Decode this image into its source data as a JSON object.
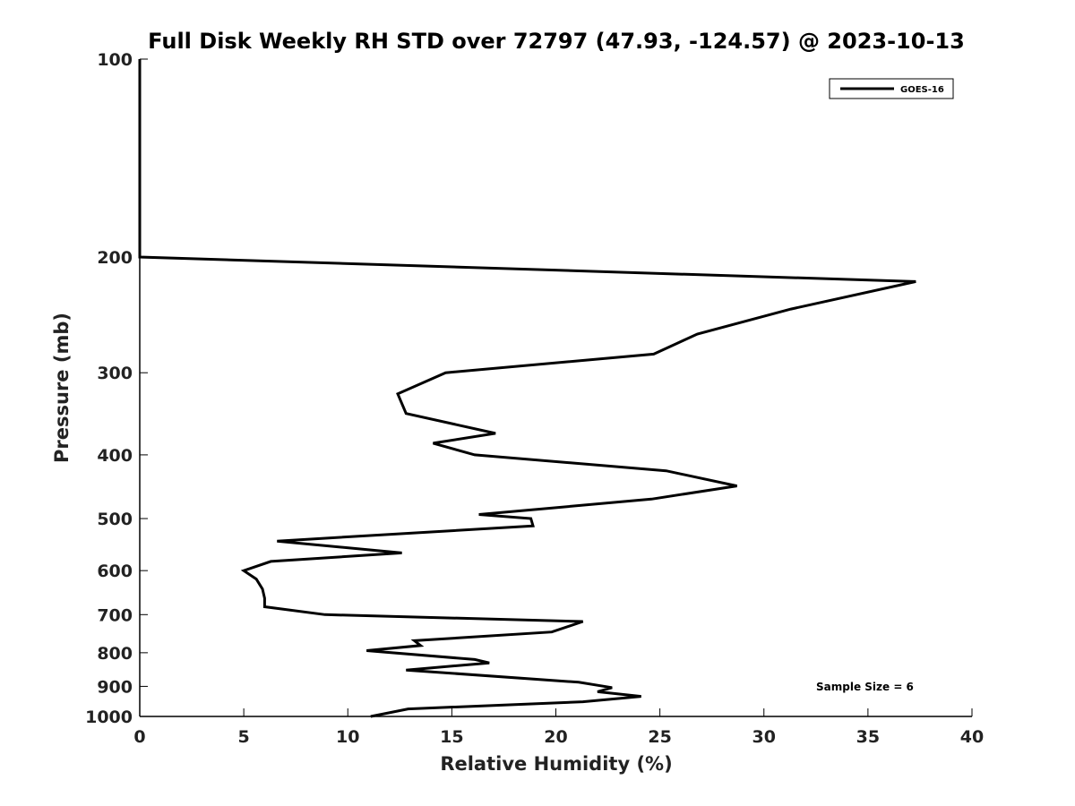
{
  "chart_data": {
    "type": "line",
    "title": "Full Disk Weekly RH STD over 72797 (47.93, -124.57) @ 2023-10-13",
    "xlabel": "Relative Humidity (%)",
    "ylabel": "Pressure (mb)",
    "xlim": [
      0,
      40
    ],
    "ylim": [
      100,
      1000
    ],
    "y_scale": "log",
    "y_reversed": true,
    "x_ticks": [
      0,
      5,
      10,
      15,
      20,
      25,
      30,
      35,
      40
    ],
    "x_tick_labels": [
      "0",
      "5",
      "10",
      "15",
      "20",
      "25",
      "30",
      "35",
      "40"
    ],
    "y_ticks": [
      100,
      200,
      300,
      400,
      500,
      600,
      700,
      800,
      900,
      1000
    ],
    "y_tick_labels": [
      "100",
      "200",
      "300",
      "400",
      "500",
      "600",
      "700",
      "800",
      "900",
      "1000"
    ],
    "grid": false,
    "legend_position": "top-right",
    "annotation": "Sample Size = 6",
    "series": [
      {
        "name": "GOES-16",
        "color": "#000000",
        "points": [
          [
            0,
            100
          ],
          [
            0,
            150
          ],
          [
            0,
            200
          ],
          [
            37.3,
            218
          ],
          [
            31.3,
            240
          ],
          [
            26.8,
            262
          ],
          [
            24.7,
            281
          ],
          [
            14.7,
            300
          ],
          [
            12.4,
            323
          ],
          [
            12.8,
            346
          ],
          [
            17.1,
            371
          ],
          [
            14.1,
            384
          ],
          [
            16.1,
            400
          ],
          [
            25.3,
            423
          ],
          [
            28.7,
            446
          ],
          [
            24.6,
            467
          ],
          [
            16.3,
            493
          ],
          [
            18.8,
            500
          ],
          [
            18.9,
            513
          ],
          [
            6.6,
            541
          ],
          [
            12.6,
            564
          ],
          [
            6.3,
            581
          ],
          [
            5.0,
            600
          ],
          [
            5.6,
            618
          ],
          [
            5.9,
            640
          ],
          [
            6.0,
            661
          ],
          [
            6.0,
            681
          ],
          [
            8.9,
            700
          ],
          [
            21.3,
            717
          ],
          [
            19.8,
            744
          ],
          [
            13.2,
            767
          ],
          [
            13.5,
            780
          ],
          [
            10.9,
            794
          ],
          [
            16.1,
            819
          ],
          [
            16.8,
            829
          ],
          [
            12.8,
            850
          ],
          [
            21.1,
            887
          ],
          [
            22.7,
            904
          ],
          [
            22.0,
            917
          ],
          [
            24.1,
            932
          ],
          [
            21.3,
            950
          ],
          [
            12.9,
            974
          ],
          [
            11.1,
            1000
          ]
        ]
      }
    ]
  }
}
